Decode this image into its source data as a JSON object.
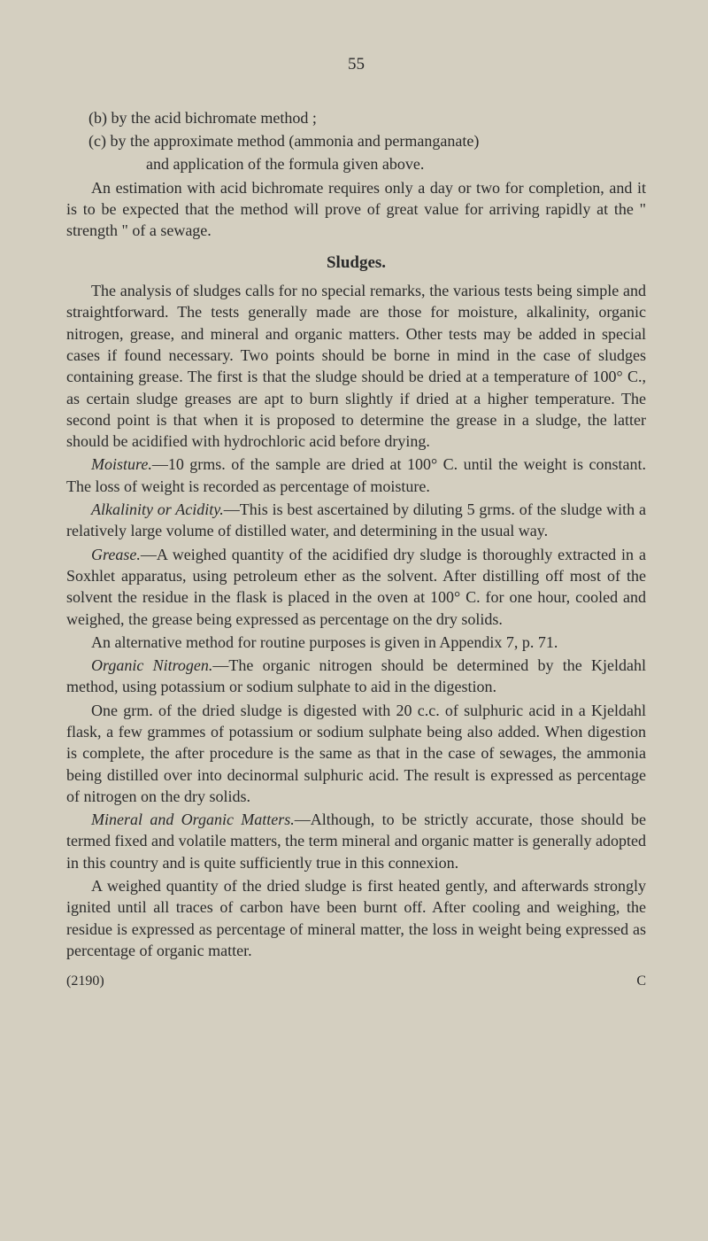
{
  "page_number": "55",
  "item_b": "(b) by the acid bichromate method ;",
  "item_c": "(c) by the approximate method (ammonia and permanganate)",
  "item_c_cont": "and application of the formula given above.",
  "para1": "An estimation with acid bichromate requires only a day or two for completion, and it is to be expected that the method will prove of great value for arriving rapidly at the \" strength \" of a sewage.",
  "heading_sludges": "Sludges.",
  "para2": "The analysis of sludges calls for no special remarks, the various tests being simple and straightforward. The tests generally made are those for moisture, alkalinity, organic nitrogen, grease, and mineral and organic matters. Other tests may be added in special cases if found necessary. Two points should be borne in mind in the case of sludges containing grease. The first is that the sludge should be dried at a temperature of 100° C., as certain sludge greases are apt to burn slightly if dried at a higher temperature. The second point is that when it is proposed to determine the grease in a sludge, the latter should be acidified with hydrochloric acid before drying.",
  "moisture_label": "Moisture.",
  "moisture_text": "—10 grms. of the sample are dried at 100° C. until the weight is constant. The loss of weight is recorded as percentage of moisture.",
  "alkalinity_label": "Alkalinity or Acidity.",
  "alkalinity_text": "—This is best ascertained by diluting 5 grms. of the sludge with a relatively large volume of distilled water, and determining in the usual way.",
  "grease_label": "Grease.",
  "grease_text": "—A weighed quantity of the acidified dry sludge is thor­oughly extracted in a Soxhlet apparatus, using petroleum ether as the solvent. After distilling off most of the solvent the residue in the flask is placed in the oven at 100° C. for one hour, cooled and weighed, the grease being expressed as percentage on the dry solids.",
  "para_alt": "An alternative method for routine purposes is given in Appendix 7, p. 71.",
  "organic_label": "Organic Nitrogen.",
  "organic_text": "—The organic nitrogen should be determined by the Kjeldahl method, using potassium or sodium sulphate to aid in the digestion.",
  "para_one_grm": "One grm. of the dried sludge is digested with 20 c.c. of sulphuric acid in a Kjeldahl flask, a few grammes of potassium or sodium sulphate being also added. When digestion is complete, the after procedure is the same as that in the case of sewages, the ammonia being distilled over into decinormal sulphuric acid. The result is expressed as percentage of nitrogen on the dry solids.",
  "mineral_label": "Mineral and Organic Matters.",
  "mineral_text": "—Although, to be strictly accurate, those should be termed fixed and volatile matters, the term mineral and organic matter is generally adopted in this country and is quite sufficiently true in this connexion.",
  "para_weighed": "A weighed quantity of the dried sludge is first heated gently, and afterwards strongly ignited until all traces of carbon have been burnt off. After cooling and weighing, the residue is expressed as percentage of mineral matter, the loss in weight being expressed as percentage of organic matter.",
  "footer_left": "(2190)",
  "footer_right": "C",
  "colors": {
    "background": "#d4cfc0",
    "text": "#2a2a2a"
  },
  "typography": {
    "body_fontsize": 18,
    "body_family": "Georgia, Times New Roman, serif",
    "line_height": 1.35
  }
}
